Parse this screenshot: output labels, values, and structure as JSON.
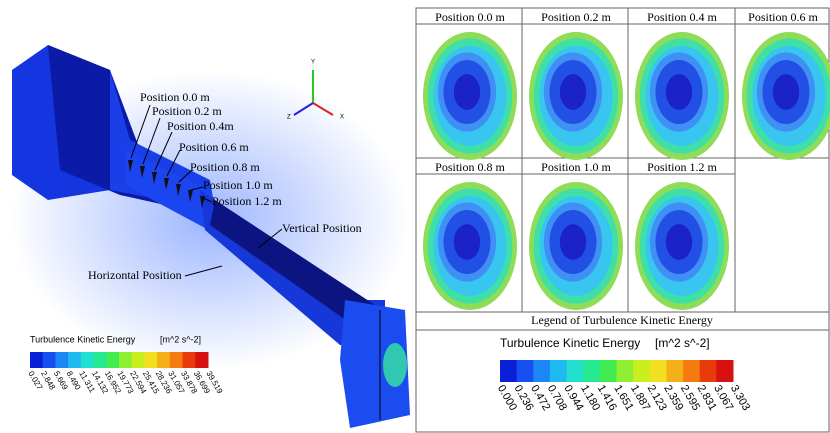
{
  "left_panel": {
    "position_labels": [
      "Position 0.0 m",
      "Position 0.2 m",
      "Position 0.4m",
      "Position 0.6 m",
      "Position 0.8 m",
      "Position 1.0 m",
      "Position 1.2 m"
    ],
    "vertical_label": "Vertical Position",
    "horizontal_label": "Horizontal Position",
    "axes": [
      "Y",
      "X",
      "Z"
    ],
    "legend": {
      "title": "Turbulence Kinetic Energy",
      "unit": "[m^2 s^-2]",
      "ticks": [
        "0.027",
        "2.848",
        "5.669",
        "8.490",
        "11.311",
        "14.132",
        "16.952",
        "19.773",
        "22.594",
        "25.415",
        "28.236",
        "31.057",
        "33.878",
        "36.699",
        "39.519"
      ]
    }
  },
  "right_panel": {
    "cells": [
      "Position 0.0 m",
      "Position 0.2 m",
      "Position 0.4 m",
      "Position 0.6 m",
      "Position 0.8 m",
      "Position 1.0 m",
      "Position 1.2 m"
    ],
    "legend_heading": "Legend of Turbulence Kinetic Energy",
    "legend": {
      "title": "Turbulence Kinetic Energy",
      "unit": "[m^2 s^-2]",
      "ticks": [
        "0.000",
        "0.236",
        "0.472",
        "0.708",
        "0.944",
        "1.180",
        "1.416",
        "1.651",
        "1.887",
        "2.123",
        "2.359",
        "2.595",
        "2.831",
        "3.067",
        "3.303"
      ]
    }
  }
}
